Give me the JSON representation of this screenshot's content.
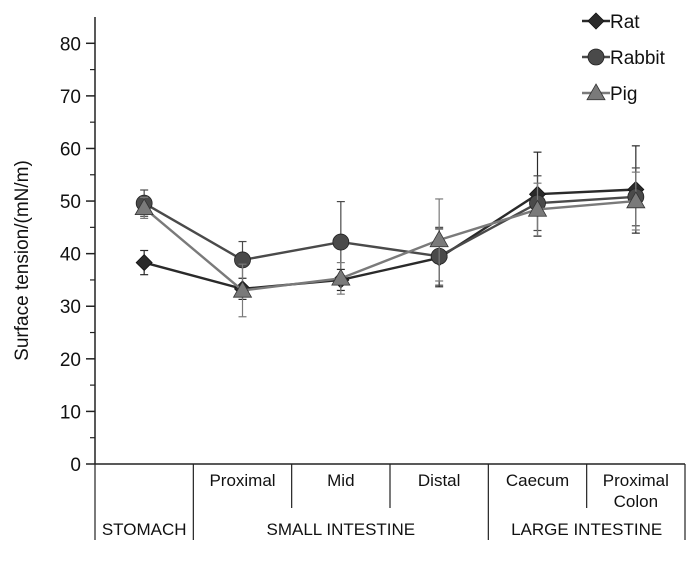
{
  "chart_data": {
    "type": "line",
    "title": "",
    "ylabel": "Surface tension/(mN/m)",
    "xlabel": "",
    "ylim": [
      0,
      85
    ],
    "yticks": [
      0,
      10,
      20,
      30,
      40,
      50,
      60,
      70,
      80
    ],
    "grid": false,
    "legend": "top-right",
    "categories": [
      "",
      "Proximal",
      "Mid",
      "Distal",
      "Caecum",
      "Proximal Colon"
    ],
    "category_lines": [
      [
        "",
        ""
      ],
      [
        "Proximal",
        ""
      ],
      [
        "Mid",
        ""
      ],
      [
        "Distal",
        ""
      ],
      [
        "Caecum",
        ""
      ],
      [
        "Proximal",
        "Colon"
      ]
    ],
    "groups": [
      {
        "label": "STOMACH",
        "span": [
          0,
          0
        ]
      },
      {
        "label": "SMALL INTESTINE",
        "span": [
          1,
          3
        ]
      },
      {
        "label": "LARGE INTESTINE",
        "span": [
          4,
          5
        ]
      }
    ],
    "series": [
      {
        "name": "Rat",
        "marker": "diamond",
        "color": "#2a2a2a",
        "values": [
          38.3,
          33.3,
          35.0,
          39.2,
          51.3,
          52.2
        ],
        "errors": [
          2.3,
          2.0,
          2.0,
          5.5,
          8.0,
          8.3
        ]
      },
      {
        "name": "Rabbit",
        "marker": "circle",
        "color": "#4a4a4a",
        "values": [
          49.6,
          38.8,
          42.2,
          39.5,
          49.6,
          50.8
        ],
        "errors": [
          2.5,
          3.5,
          7.7,
          5.5,
          5.2,
          5.5
        ]
      },
      {
        "name": "Pig",
        "marker": "triangle",
        "color": "#7a7a7a",
        "values": [
          48.7,
          33.0,
          35.3,
          42.6,
          48.4,
          50.0
        ],
        "errors": [
          2.0,
          5.0,
          3.0,
          7.8,
          5.0,
          5.5
        ]
      }
    ]
  }
}
